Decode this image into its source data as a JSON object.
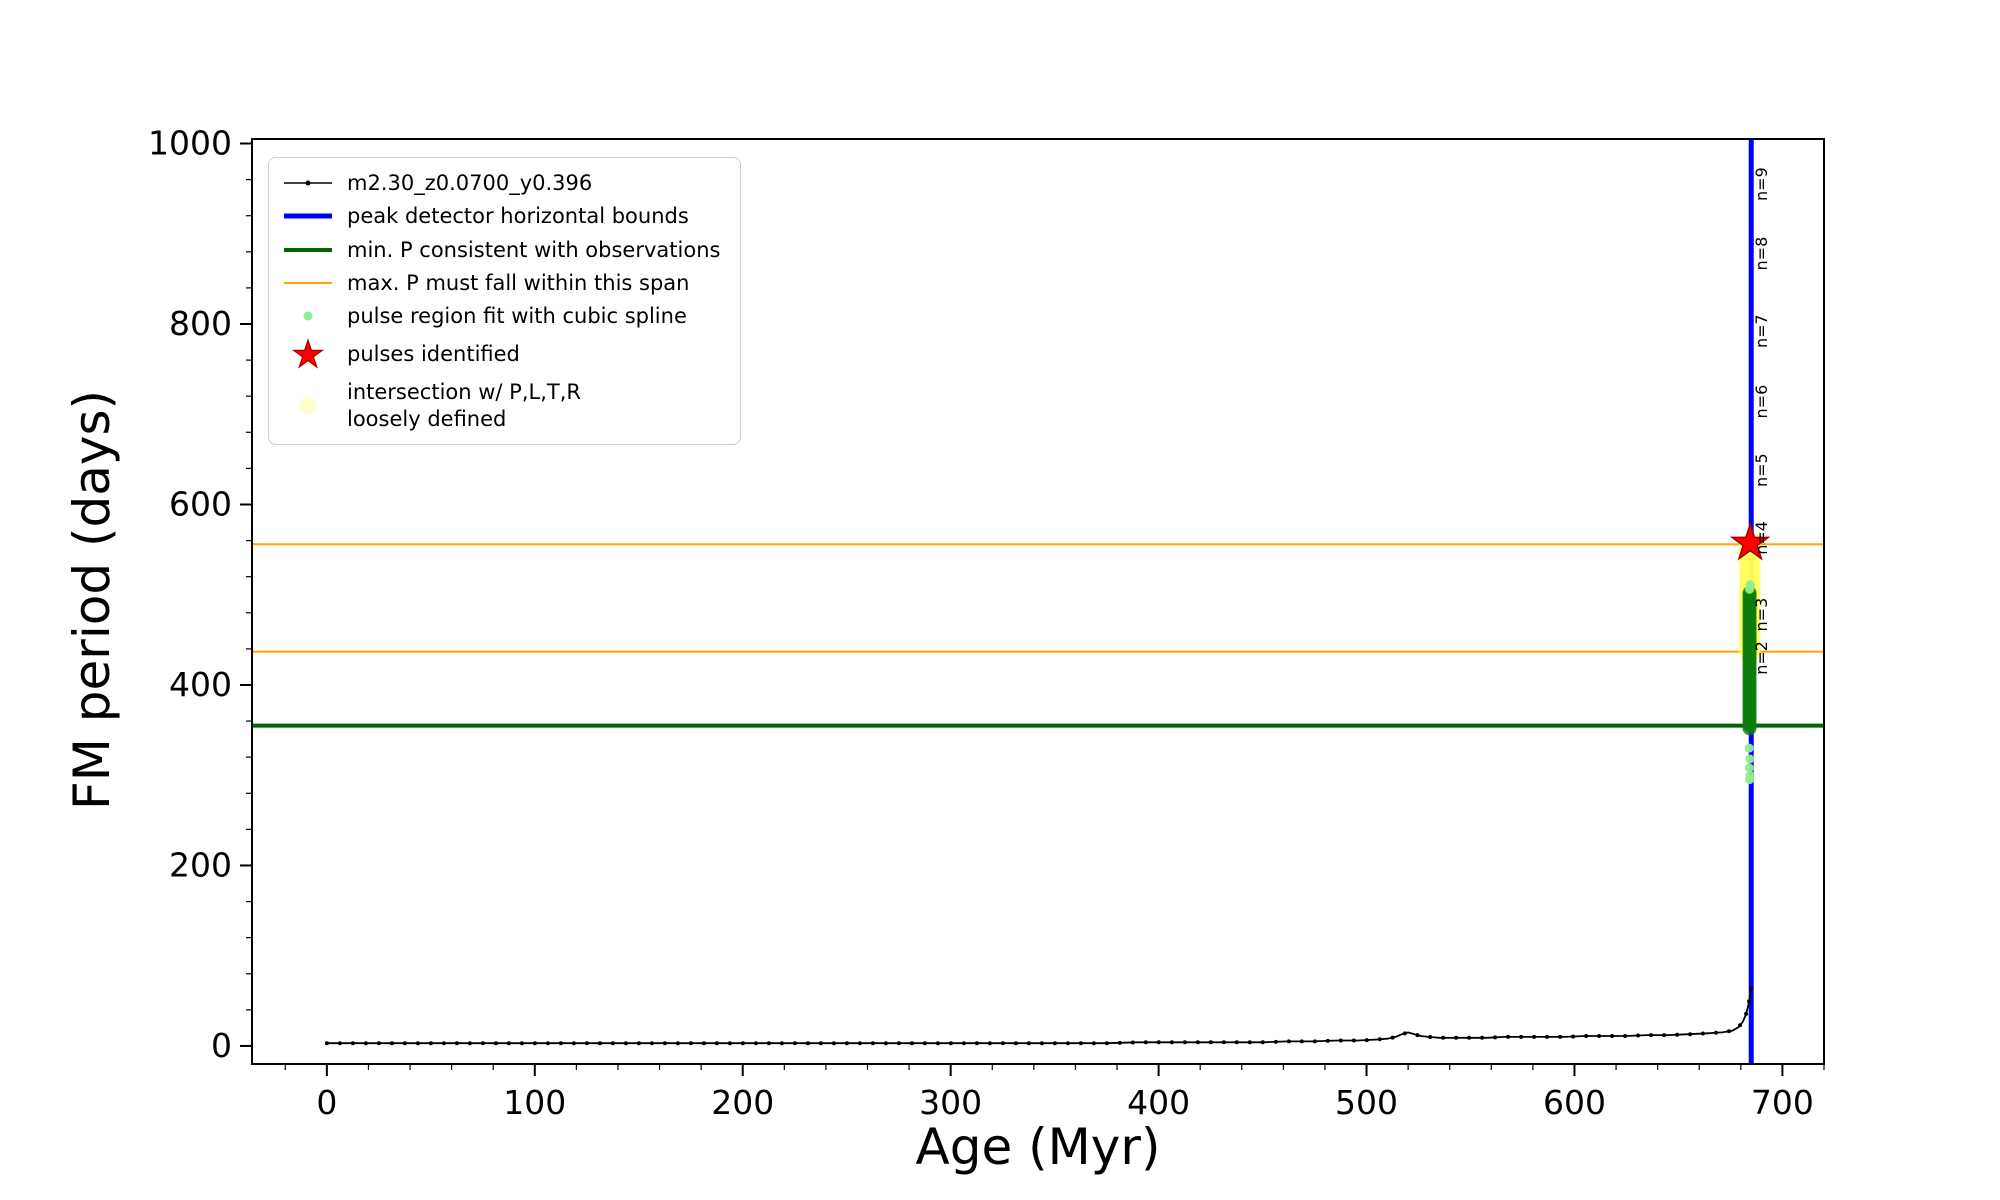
{
  "chart_data": {
    "type": "line",
    "title": "",
    "xlabel": "Age (Myr)",
    "ylabel": "FM period (days)",
    "xlim": [
      -36,
      720
    ],
    "ylim": [
      -20,
      1005
    ],
    "xticks": [
      0,
      100,
      200,
      300,
      400,
      500,
      600,
      700
    ],
    "yticks": [
      0,
      200,
      400,
      600,
      800,
      1000
    ],
    "x_minor_step": 20,
    "y_minor_step": 40,
    "grid": false,
    "track": {
      "name": "m2.30_z0.0700_y0.396",
      "color": "#000000",
      "points": [
        [
          0,
          3
        ],
        [
          15,
          3
        ],
        [
          30,
          3
        ],
        [
          45,
          3
        ],
        [
          60,
          3
        ],
        [
          75,
          3
        ],
        [
          90,
          3
        ],
        [
          105,
          3
        ],
        [
          120,
          3
        ],
        [
          135,
          3
        ],
        [
          150,
          3
        ],
        [
          165,
          3
        ],
        [
          180,
          3
        ],
        [
          195,
          3
        ],
        [
          210,
          3
        ],
        [
          225,
          3
        ],
        [
          240,
          3
        ],
        [
          255,
          3
        ],
        [
          270,
          3
        ],
        [
          285,
          3
        ],
        [
          300,
          3
        ],
        [
          315,
          3
        ],
        [
          330,
          3
        ],
        [
          345,
          3
        ],
        [
          360,
          3
        ],
        [
          375,
          3
        ],
        [
          390,
          4
        ],
        [
          405,
          4
        ],
        [
          420,
          4
        ],
        [
          435,
          4
        ],
        [
          450,
          4
        ],
        [
          462,
          5
        ],
        [
          474,
          5
        ],
        [
          486,
          6
        ],
        [
          496,
          6
        ],
        [
          504,
          7
        ],
        [
          510,
          8
        ],
        [
          514,
          10
        ],
        [
          517,
          13
        ],
        [
          520,
          15
        ],
        [
          523,
          13
        ],
        [
          526,
          11
        ],
        [
          530,
          10
        ],
        [
          535,
          9
        ],
        [
          542,
          9
        ],
        [
          550,
          9
        ],
        [
          558,
          9
        ],
        [
          566,
          10
        ],
        [
          575,
          10
        ],
        [
          585,
          10
        ],
        [
          595,
          10
        ],
        [
          605,
          11
        ],
        [
          615,
          11
        ],
        [
          625,
          11
        ],
        [
          635,
          12
        ],
        [
          645,
          12
        ],
        [
          655,
          13
        ],
        [
          664,
          14
        ],
        [
          671,
          15
        ],
        [
          676,
          17
        ],
        [
          679,
          21
        ],
        [
          681,
          27
        ],
        [
          682.5,
          35
        ],
        [
          683.6,
          45
        ],
        [
          684.4,
          55
        ],
        [
          685,
          66
        ]
      ]
    },
    "peak_vline": {
      "x": 685,
      "color": "#0000ff",
      "lw": 5
    },
    "min_p_line": {
      "y": 355,
      "color": "#006400",
      "lw": 4
    },
    "max_p_span": {
      "y_low": 437,
      "y_high": 556,
      "color": "#ffa500",
      "lw": 2
    },
    "intersection_blob": {
      "x": 684.3,
      "y_min": 437,
      "y_max": 557,
      "color": "#ffff55"
    },
    "pulse_region_blob": {
      "x": 684.2,
      "y_min": 352,
      "y_max": 502,
      "color": "#0b7d0b"
    },
    "pulse_region_outliers": {
      "color": "#90ee90",
      "points": [
        [
          684.2,
          506
        ],
        [
          684.5,
          511
        ],
        [
          684,
          330
        ],
        [
          684.3,
          318
        ],
        [
          684.1,
          308
        ],
        [
          684.4,
          300
        ],
        [
          684.2,
          295
        ]
      ]
    },
    "pulses_identified": {
      "color": "#ff0000",
      "edge": "#a00000",
      "points": [
        [
          684.5,
          557
        ]
      ]
    },
    "pulse_labels": {
      "color": "#000000",
      "x": 687,
      "items": [
        {
          "text": "n=9",
          "period": 955
        },
        {
          "text": "n=8",
          "period": 878
        },
        {
          "text": "n=7",
          "period": 792
        },
        {
          "text": "n=6",
          "period": 714
        },
        {
          "text": "n=5",
          "period": 638
        },
        {
          "text": "n=4",
          "period": 563
        },
        {
          "text": "n=3",
          "period": 478
        },
        {
          "text": "n=2",
          "period": 430
        }
      ]
    },
    "legend": {
      "items": [
        {
          "label": "m2.30_z0.0700_y0.396",
          "marker": "line-dot",
          "color": "#000000",
          "lw": 1.5
        },
        {
          "label": "peak detector horizontal bounds",
          "marker": "line",
          "color": "#0000ff",
          "lw": 5
        },
        {
          "label": "min. P consistent with observations",
          "marker": "line",
          "color": "#006400",
          "lw": 4
        },
        {
          "label": "max. P must fall within this span",
          "marker": "line",
          "color": "#ffa500",
          "lw": 2
        },
        {
          "label": "pulse region fit with cubic spline",
          "marker": "dot",
          "color": "#90ee90",
          "r": 4.5
        },
        {
          "label": "pulses identified",
          "marker": "star",
          "color": "#ff0000",
          "r": 15
        },
        {
          "label": "intersection w/ P,L,T,R",
          "label2": "loosely defined",
          "marker": "dot",
          "color": "#ffffcc",
          "r": 8
        }
      ]
    }
  }
}
